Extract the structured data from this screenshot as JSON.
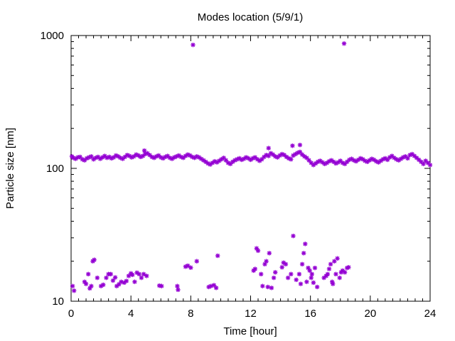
{
  "chart_data": {
    "type": "scatter",
    "title": "Modes location (5/9/1)",
    "xlabel": "Time [hour]",
    "ylabel": "Particle size [nm]",
    "xlim": [
      0,
      24
    ],
    "ylim": [
      10,
      1000
    ],
    "yscale": "log",
    "x_ticks": [
      "0",
      "4",
      "8",
      "12",
      "16",
      "20",
      "24"
    ],
    "y_ticks": [
      "10",
      "100",
      "1000"
    ],
    "grid": false,
    "marker_color": "#9400d3",
    "series": [
      {
        "points": [
          [
            0.05,
            123
          ],
          [
            0.15,
            120
          ],
          [
            0.3,
            118
          ],
          [
            0.45,
            121
          ],
          [
            0.6,
            122
          ],
          [
            0.75,
            117
          ],
          [
            0.9,
            115
          ],
          [
            1.05,
            119
          ],
          [
            1.2,
            121
          ],
          [
            1.35,
            123
          ],
          [
            1.5,
            117
          ],
          [
            1.65,
            120
          ],
          [
            1.8,
            122
          ],
          [
            1.95,
            118
          ],
          [
            2.1,
            121
          ],
          [
            2.25,
            124
          ],
          [
            2.4,
            120
          ],
          [
            2.55,
            122
          ],
          [
            2.7,
            119
          ],
          [
            2.85,
            121
          ],
          [
            3.0,
            125
          ],
          [
            3.15,
            123
          ],
          [
            3.3,
            120
          ],
          [
            3.45,
            118
          ],
          [
            3.6,
            122
          ],
          [
            3.75,
            126
          ],
          [
            3.9,
            124
          ],
          [
            4.05,
            121
          ],
          [
            4.2,
            123
          ],
          [
            4.35,
            127
          ],
          [
            4.5,
            125
          ],
          [
            4.65,
            122
          ],
          [
            4.8,
            124
          ],
          [
            4.95,
            128
          ],
          [
            5.1,
            130
          ],
          [
            5.25,
            126
          ],
          [
            5.4,
            122
          ],
          [
            5.55,
            120
          ],
          [
            5.7,
            123
          ],
          [
            5.85,
            125
          ],
          [
            6.0,
            121
          ],
          [
            6.15,
            119
          ],
          [
            6.3,
            122
          ],
          [
            6.45,
            124
          ],
          [
            6.6,
            120
          ],
          [
            6.75,
            118
          ],
          [
            6.9,
            121
          ],
          [
            7.05,
            123
          ],
          [
            7.2,
            125
          ],
          [
            7.35,
            122
          ],
          [
            7.5,
            120
          ],
          [
            7.65,
            124
          ],
          [
            7.8,
            127
          ],
          [
            7.95,
            125
          ],
          [
            8.1,
            122
          ],
          [
            8.25,
            120
          ],
          [
            8.4,
            123
          ],
          [
            8.55,
            121
          ],
          [
            8.7,
            118
          ],
          [
            8.85,
            115
          ],
          [
            9.0,
            112
          ],
          [
            9.15,
            109
          ],
          [
            9.3,
            107
          ],
          [
            9.45,
            110
          ],
          [
            9.6,
            113
          ],
          [
            9.75,
            111
          ],
          [
            9.9,
            114
          ],
          [
            10.05,
            117
          ],
          [
            10.2,
            120
          ],
          [
            10.35,
            115
          ],
          [
            10.5,
            110
          ],
          [
            10.65,
            108
          ],
          [
            10.8,
            112
          ],
          [
            10.95,
            115
          ],
          [
            11.1,
            117
          ],
          [
            11.25,
            119
          ],
          [
            11.4,
            116
          ],
          [
            11.55,
            118
          ],
          [
            11.7,
            121
          ],
          [
            11.85,
            119
          ],
          [
            12.0,
            116
          ],
          [
            12.15,
            119
          ],
          [
            12.3,
            121
          ],
          [
            12.45,
            117
          ],
          [
            12.6,
            114
          ],
          [
            12.75,
            117
          ],
          [
            12.9,
            122
          ],
          [
            13.05,
            126
          ],
          [
            13.2,
            124
          ],
          [
            13.35,
            130
          ],
          [
            13.5,
            127
          ],
          [
            13.65,
            123
          ],
          [
            13.8,
            121
          ],
          [
            13.95,
            125
          ],
          [
            14.1,
            128
          ],
          [
            14.25,
            126
          ],
          [
            14.4,
            122
          ],
          [
            14.55,
            119
          ],
          [
            14.7,
            117
          ],
          [
            14.85,
            125
          ],
          [
            15.0,
            128
          ],
          [
            15.15,
            131
          ],
          [
            15.3,
            133
          ],
          [
            15.45,
            127
          ],
          [
            15.6,
            123
          ],
          [
            15.75,
            120
          ],
          [
            15.9,
            115
          ],
          [
            16.05,
            110
          ],
          [
            16.2,
            106
          ],
          [
            16.35,
            109
          ],
          [
            16.5,
            112
          ],
          [
            16.65,
            114
          ],
          [
            16.8,
            111
          ],
          [
            16.95,
            108
          ],
          [
            17.1,
            110
          ],
          [
            17.25,
            113
          ],
          [
            17.4,
            115
          ],
          [
            17.55,
            112
          ],
          [
            17.7,
            109
          ],
          [
            17.85,
            111
          ],
          [
            18.0,
            114
          ],
          [
            18.15,
            110
          ],
          [
            18.3,
            108
          ],
          [
            18.45,
            112
          ],
          [
            18.6,
            116
          ],
          [
            18.75,
            118
          ],
          [
            18.9,
            115
          ],
          [
            19.05,
            113
          ],
          [
            19.2,
            116
          ],
          [
            19.35,
            119
          ],
          [
            19.5,
            117
          ],
          [
            19.65,
            114
          ],
          [
            19.8,
            112
          ],
          [
            19.95,
            115
          ],
          [
            20.1,
            118
          ],
          [
            20.25,
            116
          ],
          [
            20.4,
            113
          ],
          [
            20.55,
            111
          ],
          [
            20.7,
            114
          ],
          [
            20.85,
            117
          ],
          [
            21.0,
            119
          ],
          [
            21.15,
            116
          ],
          [
            21.3,
            121
          ],
          [
            21.45,
            124
          ],
          [
            21.6,
            120
          ],
          [
            21.75,
            117
          ],
          [
            21.9,
            115
          ],
          [
            22.05,
            118
          ],
          [
            22.2,
            121
          ],
          [
            22.35,
            123
          ],
          [
            22.5,
            119
          ],
          [
            22.65,
            126
          ],
          [
            22.8,
            128
          ],
          [
            22.95,
            124
          ],
          [
            23.1,
            120
          ],
          [
            23.25,
            116
          ],
          [
            23.4,
            112
          ],
          [
            23.55,
            108
          ],
          [
            23.7,
            114
          ],
          [
            23.85,
            110
          ],
          [
            24.0,
            106
          ],
          [
            8.15,
            850
          ],
          [
            18.25,
            870
          ],
          [
            14.8,
            148
          ],
          [
            15.3,
            150
          ],
          [
            13.2,
            142
          ],
          [
            4.9,
            136
          ],
          [
            0.1,
            13
          ],
          [
            0.2,
            12
          ],
          [
            0.9,
            14
          ],
          [
            1.0,
            13.5
          ],
          [
            1.15,
            16
          ],
          [
            1.25,
            12.5
          ],
          [
            1.35,
            13
          ],
          [
            1.45,
            20
          ],
          [
            1.55,
            20.5
          ],
          [
            1.75,
            15
          ],
          [
            2.0,
            13
          ],
          [
            2.15,
            13.3
          ],
          [
            2.35,
            15
          ],
          [
            2.5,
            16
          ],
          [
            2.65,
            16
          ],
          [
            2.8,
            14.3
          ],
          [
            2.95,
            15.1
          ],
          [
            3.05,
            13
          ],
          [
            3.2,
            13.4
          ],
          [
            3.35,
            14
          ],
          [
            3.55,
            13.8
          ],
          [
            3.7,
            14.2
          ],
          [
            3.85,
            15.5
          ],
          [
            4.0,
            16.2
          ],
          [
            4.1,
            15.8
          ],
          [
            4.25,
            14
          ],
          [
            4.4,
            16.4
          ],
          [
            4.55,
            16
          ],
          [
            4.7,
            15
          ],
          [
            4.85,
            16
          ],
          [
            5.05,
            15.5
          ],
          [
            5.9,
            13.1
          ],
          [
            6.05,
            13
          ],
          [
            7.1,
            13
          ],
          [
            7.15,
            12.2
          ],
          [
            7.65,
            18.2
          ],
          [
            7.8,
            18.5
          ],
          [
            8.0,
            17.9
          ],
          [
            8.4,
            20
          ],
          [
            9.2,
            12.8
          ],
          [
            9.35,
            13
          ],
          [
            9.55,
            13.2
          ],
          [
            9.7,
            12.6
          ],
          [
            9.8,
            22
          ],
          [
            12.2,
            17
          ],
          [
            12.3,
            17.5
          ],
          [
            12.4,
            25
          ],
          [
            12.5,
            24
          ],
          [
            12.7,
            16
          ],
          [
            12.8,
            13
          ],
          [
            12.95,
            19
          ],
          [
            13.05,
            20
          ],
          [
            13.15,
            12.8
          ],
          [
            13.25,
            23
          ],
          [
            13.4,
            12.6
          ],
          [
            13.55,
            15
          ],
          [
            13.65,
            16.5
          ],
          [
            14.1,
            18
          ],
          [
            14.2,
            19.5
          ],
          [
            14.35,
            19
          ],
          [
            14.5,
            15
          ],
          [
            14.7,
            16
          ],
          [
            14.85,
            31
          ],
          [
            15.05,
            14.5
          ],
          [
            15.25,
            16
          ],
          [
            15.35,
            13.5
          ],
          [
            15.45,
            19
          ],
          [
            15.55,
            23
          ],
          [
            15.65,
            27
          ],
          [
            15.75,
            14
          ],
          [
            15.85,
            17.8
          ],
          [
            15.95,
            17
          ],
          [
            16.05,
            15
          ],
          [
            16.1,
            16
          ],
          [
            16.2,
            13.8
          ],
          [
            16.3,
            17.8
          ],
          [
            16.45,
            12.8
          ],
          [
            16.9,
            15
          ],
          [
            17.05,
            15.5
          ],
          [
            17.15,
            16
          ],
          [
            17.25,
            17.5
          ],
          [
            17.35,
            19
          ],
          [
            17.45,
            14
          ],
          [
            17.5,
            13.5
          ],
          [
            17.6,
            20
          ],
          [
            17.7,
            16
          ],
          [
            17.8,
            21
          ],
          [
            17.95,
            15
          ],
          [
            18.05,
            16.5
          ],
          [
            18.15,
            17
          ],
          [
            18.3,
            16.5
          ],
          [
            18.45,
            17.8
          ],
          [
            18.55,
            18
          ]
        ]
      }
    ]
  }
}
